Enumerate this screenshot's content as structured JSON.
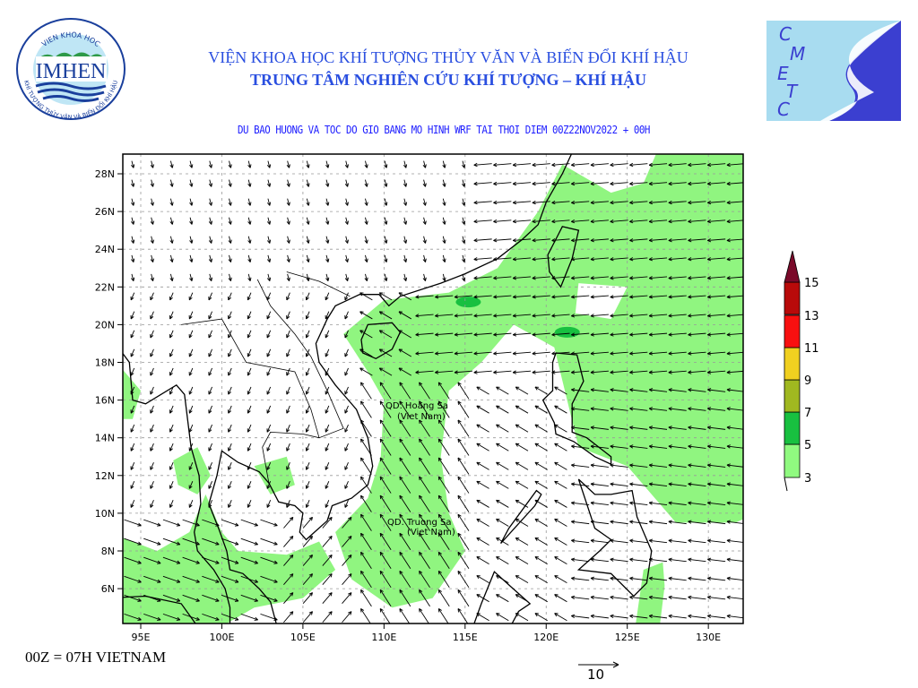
{
  "header": {
    "institute_line": "VIỆN KHOA HỌC KHÍ TƯỢNG THỦY VĂN VÀ BIẾN ĐỔI KHÍ HẬU",
    "center_line": "TRUNG TÂM NGHIÊN CỨU KHÍ TƯỢNG – KHÍ HẬU",
    "forecast_title": "DU BAO HUONG VA TOC DO GIO BANG MO HINH WRF TAI THOI DIEM  00Z22NOV2022 + 00H"
  },
  "logos": {
    "left": {
      "name": "IMHEN",
      "ring_top": "VIEN KHOA HOC",
      "ring_bottom": "KHÍ TƯỢNG THỦY VĂN VÀ BIẾN ĐỔI KHÍ HẬU",
      "colors": {
        "blue": "#1a3f9c",
        "green": "#2e9a48"
      }
    },
    "right": {
      "name": "CMETC",
      "letters": [
        "C",
        "M",
        "E",
        "T",
        "C"
      ],
      "colors": {
        "background": "#a8dcf0",
        "shape": "#3b3fd0"
      }
    }
  },
  "map": {
    "lat_ticks": [
      "28N",
      "26N",
      "24N",
      "22N",
      "20N",
      "18N",
      "16N",
      "14N",
      "12N",
      "10N",
      "8N",
      "6N"
    ],
    "lon_ticks": [
      "95E",
      "100E",
      "105E",
      "110E",
      "115E",
      "120E",
      "125E",
      "130E"
    ],
    "labels": {
      "hoang_sa_1": "QD. Hoang Sa",
      "hoang_sa_2": "(Viet Nam)",
      "truong_sa_1": "QD. Truong Sa",
      "truong_sa_2": "(Viet Nam)"
    },
    "shading_color": "#90f580",
    "grid": "dashed"
  },
  "legend": {
    "levels": [
      "3",
      "5",
      "7",
      "9",
      "11",
      "13",
      "15"
    ],
    "colors": [
      "#90fa80",
      "#18c040",
      "#a0b820",
      "#f0d020",
      "#f81010",
      "#b80a0a",
      "#7a0a2a"
    ]
  },
  "footer": {
    "time_note": "00Z = 07H VIETNAM",
    "reference_vector": "10"
  }
}
